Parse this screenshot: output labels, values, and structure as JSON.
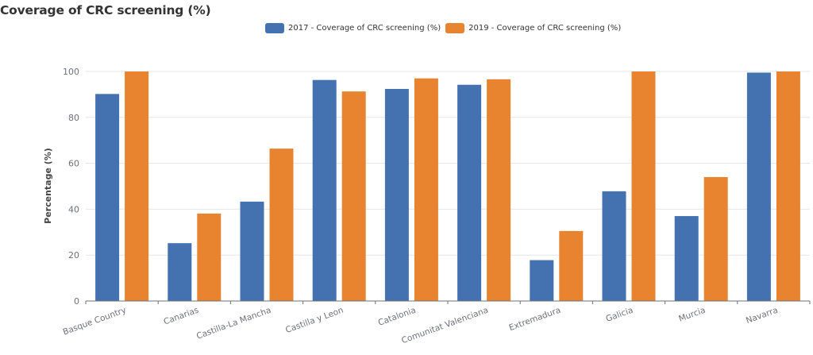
{
  "chart_data": {
    "type": "bar",
    "title": "Coverage of CRC screening (%)",
    "xlabel": "",
    "ylabel": "Percentage (%)",
    "ylim": [
      0,
      100
    ],
    "yticks": [
      0,
      20,
      40,
      60,
      80,
      100
    ],
    "grid": true,
    "legend_position": "top-center",
    "categories": [
      "Basque Country",
      "Canarias",
      "Castilla-La Mancha",
      "Castilla y Leon",
      "Catalonia",
      "Comunitat Valenciana",
      "Extremadura",
      "Galicia",
      "Murcia",
      "Navarra"
    ],
    "series": [
      {
        "name": "2017 - Coverage of CRC screening (%)",
        "color": "#4472b0",
        "values": [
          90.2,
          25.2,
          43.3,
          96.3,
          92.4,
          94.2,
          17.8,
          47.8,
          37.0,
          99.5
        ]
      },
      {
        "name": "2019 - Coverage of CRC screening (%)",
        "color": "#e8842f",
        "values": [
          100,
          38.1,
          66.4,
          91.3,
          97.0,
          96.6,
          30.5,
          100,
          54.0,
          100
        ]
      }
    ]
  }
}
